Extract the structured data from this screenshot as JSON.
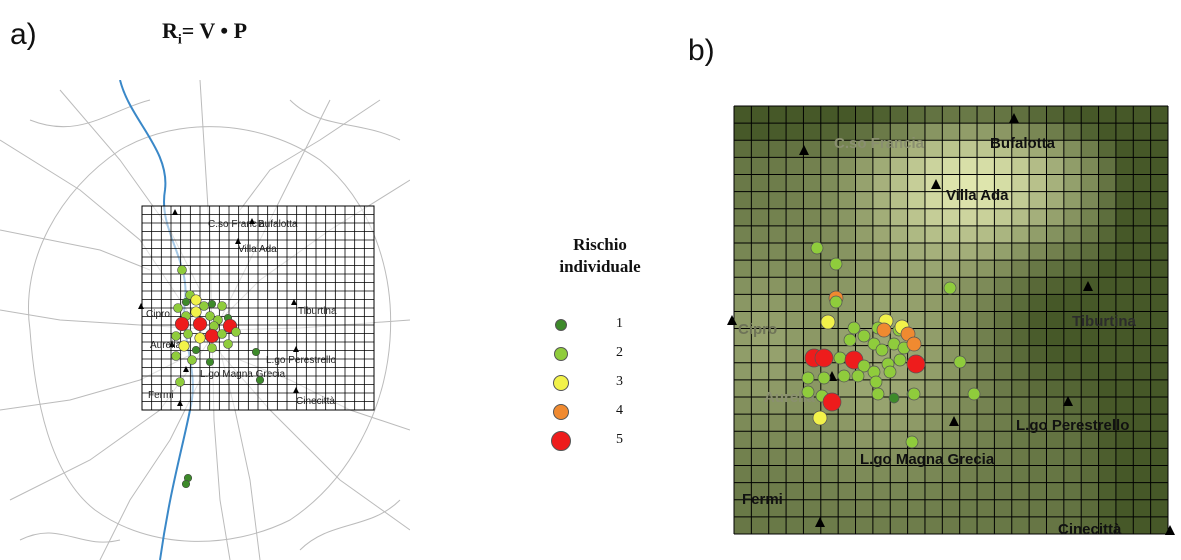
{
  "panel_a": {
    "label": "a)",
    "formula": {
      "lhs": "R",
      "sub": "i",
      "rhs": "= V • P"
    },
    "places": [
      "C.so Francia",
      "Bufalotta",
      "Villa Ada",
      "Tiburtina",
      "Cipro",
      "Aurelia",
      "L.go Perestrello",
      "L.go Magna Grecia",
      "Fermi",
      "Cinecittà"
    ]
  },
  "panel_b": {
    "label": "b)",
    "places": [
      "C.so Francia",
      "Bufalotta",
      "Villa Ada",
      "Cipro",
      "Tiburtina",
      "Aurelia",
      "L.go Perestrello",
      "L.go Magna Grecia",
      "Fermi",
      "Cinecittà"
    ]
  },
  "legend": {
    "title_line1": "Rischio",
    "title_line2": "individuale",
    "classes": [
      {
        "value": "1",
        "color": "#3d8a2a"
      },
      {
        "value": "2",
        "color": "#8fcc3c"
      },
      {
        "value": "3",
        "color": "#f2f24a"
      },
      {
        "value": "4",
        "color": "#f08a30"
      },
      {
        "value": "5",
        "color": "#ee1c1c"
      }
    ]
  }
}
